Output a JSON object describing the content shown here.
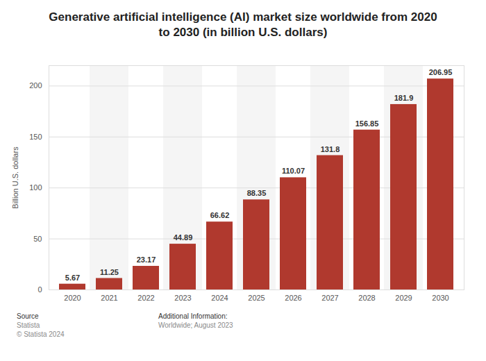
{
  "chart_data": {
    "type": "bar",
    "title": "Generative artificial intelligence (AI) market size worldwide from 2020 to 2030 (in billion U.S. dollars)",
    "y_label": "Billion U.S. dollars",
    "categories": [
      "2020",
      "2021",
      "2022",
      "2023",
      "2024",
      "2025",
      "2026",
      "2027",
      "2028",
      "2029",
      "2030"
    ],
    "values": [
      5.67,
      11.25,
      23.17,
      44.89,
      66.62,
      88.35,
      110.07,
      131.8,
      156.85,
      181.9,
      206.95
    ],
    "color": "#b0392e",
    "ylim": [
      0,
      220
    ],
    "yticks": [
      0,
      50,
      100,
      150,
      200
    ],
    "grid": true,
    "data_labels": true,
    "source_label": "Source",
    "source": "Statista",
    "copyright": "© Statista 2024",
    "info_label": "Additional Information:",
    "info": "Worldwide; August 2023"
  }
}
